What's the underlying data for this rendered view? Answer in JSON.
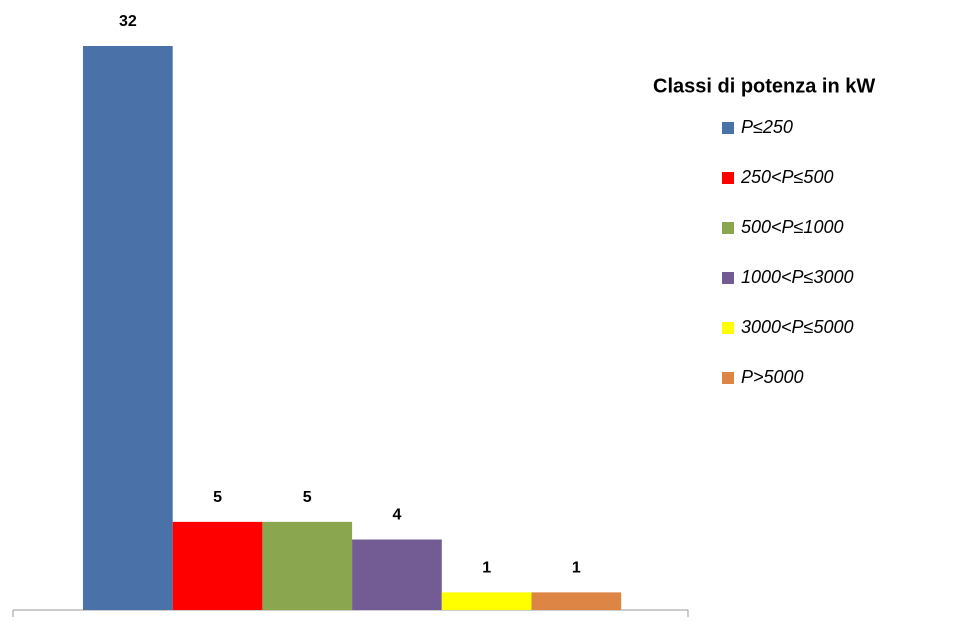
{
  "chart_data": {
    "type": "bar",
    "legend_title": "Classi di potenza in kW",
    "legend": "right",
    "series": [
      {
        "name": "P≤250",
        "color": "#4a72a8",
        "values": [
          32
        ]
      },
      {
        "name": "250<P≤500",
        "color": "#ff0000",
        "values": [
          5
        ]
      },
      {
        "name": "500<P≤1000",
        "color": "#8aa64e",
        "values": [
          5
        ]
      },
      {
        "name": "1000<P≤3000",
        "color": "#735b94",
        "values": [
          4
        ]
      },
      {
        "name": "3000<P≤5000",
        "color": "#ffff00",
        "values": [
          1
        ]
      },
      {
        "name": "P>5000",
        "color": "#dc8544",
        "values": [
          1
        ]
      }
    ]
  }
}
